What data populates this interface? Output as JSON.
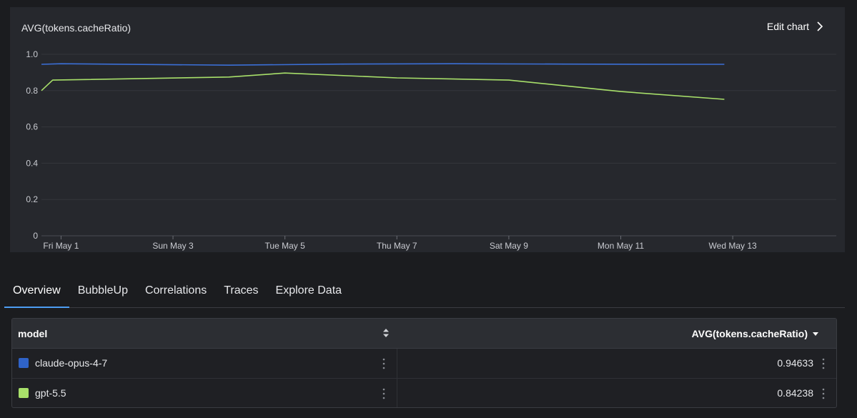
{
  "chart": {
    "title": "AVG(tokens.cacheRatio)",
    "edit_label": "Edit chart"
  },
  "chart_data": {
    "type": "line",
    "title": "AVG(tokens.cacheRatio)",
    "xlabel": "",
    "ylabel": "",
    "ylim": [
      0,
      1.0
    ],
    "yticks": [
      "0",
      "0.2",
      "0.4",
      "0.6",
      "0.8",
      "1.0"
    ],
    "ytick_values": [
      0,
      0.2,
      0.4,
      0.6,
      0.8,
      1.0
    ],
    "xticks": [
      "Fri May 1",
      "Sun May 3",
      "Tue May 5",
      "Thu May 7",
      "Sat May 9",
      "Mon May 11",
      "Wed May 13"
    ],
    "xtick_days": [
      1,
      3,
      5,
      7,
      9,
      11,
      13
    ],
    "xlim_days": [
      0.65,
      14.85
    ],
    "grid": true,
    "series": [
      {
        "name": "claude-opus-4-7",
        "color": "#3b6fd6",
        "x": [
          0.65,
          1,
          4,
          6,
          8,
          10,
          12,
          12.85
        ],
        "y": [
          0.945,
          0.948,
          0.94,
          0.946,
          0.948,
          0.946,
          0.945,
          0.945
        ]
      },
      {
        "name": "gpt-5.5",
        "color": "#a8e06a",
        "x": [
          0.65,
          0.85,
          4,
          5,
          7,
          9,
          11,
          12.85
        ],
        "y": [
          0.8,
          0.858,
          0.875,
          0.897,
          0.87,
          0.858,
          0.795,
          0.752
        ]
      }
    ]
  },
  "tabs": [
    {
      "label": "Overview",
      "active": true
    },
    {
      "label": "BubbleUp",
      "active": false
    },
    {
      "label": "Correlations",
      "active": false
    },
    {
      "label": "Traces",
      "active": false
    },
    {
      "label": "Explore Data",
      "active": false
    }
  ],
  "table": {
    "col_model": "model",
    "col_avg": "AVG(tokens.cacheRatio)",
    "rows": [
      {
        "model": "claude-opus-4-7",
        "value": "0.94633",
        "color": "#2f63c8"
      },
      {
        "model": "gpt-5.5",
        "value": "0.84238",
        "color": "#a8e06a"
      }
    ]
  }
}
